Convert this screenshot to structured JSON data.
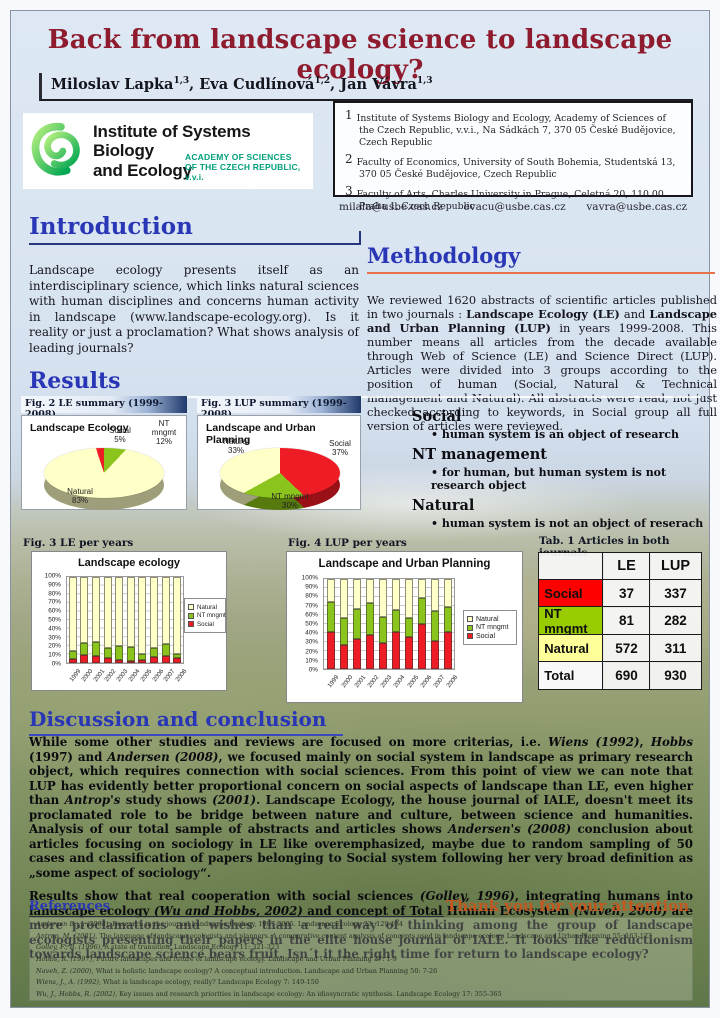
{
  "header": {
    "title": "Back from landscape science to landscape ecology?",
    "authors": [
      {
        "name": "Miloslav Lapka",
        "sup": "1,3"
      },
      {
        "name": "Eva Cudlínová",
        "sup": "1,2"
      },
      {
        "name": "Jan Vávra",
        "sup": "1,3"
      }
    ]
  },
  "logo": {
    "line1": "Institute of Systems Biology",
    "line2": "and Ecology",
    "sub1": "ACADEMY OF SCIENCES",
    "sub2": "OF THE CZECH REPUBLIC, v.v.i."
  },
  "affiliations": [
    {
      "num": "1",
      "text": "Institute of Systems Biology and Ecology, Academy of Sciences of the Czech Republic, v.v.i., Na Sádkách 7, 370 05 České Budějovice, Czech Republic"
    },
    {
      "num": "2",
      "text": "Faculty of Economics, University of South Bohemia, Studentská 13, 370 05 České Budějovice, Czech Republic"
    },
    {
      "num": "3",
      "text": "Faculty of Arts, Charles University in Prague, Celetná 20, 110 00 Praha 1, Czech Republic"
    }
  ],
  "emails": [
    "milala@usbe.cas.cz",
    "evacu@usbe.cas.cz",
    "vavra@usbe.cas.cz"
  ],
  "introduction": {
    "heading": "Introduction",
    "text": "Landscape ecology presents itself as an interdisciplinary science, which links natural sciences with human disciplines and concerns human activity in landscape (www.landscape-ecology.org). Is it reality or just a proclamation? What shows analysis of leading journals?"
  },
  "methodology": {
    "heading": "Methodology",
    "p1": "We reviewed 1620 abstracts of scientific articles published in two journals : ",
    "b1": "Landscape Ecology (LE)",
    "p2": " and ",
    "b2": "Landscape and Urban Planning (LUP)",
    "p3": " in years 1999-2008. This number means all articles from the decade available through Web of Science (LE) and Science Direct (LUP). Articles were divided into 3 groups according to the position of human (Social, Natural & Technical management and Natural). All abstracts were read, not just checked according to keywords, in Social group all full version of articles were reviewed.",
    "classes": [
      {
        "name": "Social",
        "bullet": "• human system is an object of research"
      },
      {
        "name": "NT management",
        "bullet": "•  for human, but human system is not research object"
      },
      {
        "name": "Natural",
        "bullet": "• human system is not an object of reserach"
      }
    ]
  },
  "results": {
    "heading": "Results",
    "fig2": "Fig. 2  LE summary (1999-2008)",
    "fig3": "Fig. 3  LUP summary (1999-2008)",
    "fig3b": "Fig. 3  LE per years",
    "fig4": "Fig. 4  LUP per years",
    "tab1": "Tab. 1  Articles in both journals"
  },
  "chart_data": [
    {
      "type": "pie",
      "title": "Landscape Ecology",
      "start_angle": -18,
      "slices": [
        {
          "label": "Social",
          "pct": 5,
          "color": "#ee1c25",
          "label_lines": "Social\n5%"
        },
        {
          "label": "NT mngmt",
          "pct": 12,
          "color": "#8cc41e",
          "label_lines": "NT\nmngmt\n12%"
        },
        {
          "label": "Natural",
          "pct": 83,
          "color": "#ffffc8",
          "label_lines": "Natural\n83%"
        }
      ]
    },
    {
      "type": "pie",
      "title": "Landscape and Urban Planning",
      "start_angle": 0,
      "slices": [
        {
          "label": "Social",
          "pct": 37,
          "color": "#ee1c25",
          "label_lines": "Social\n37%"
        },
        {
          "label": "NT mngmt",
          "pct": 30,
          "color": "#8cc41e",
          "label_lines": "NT mngmt\n30%"
        },
        {
          "label": "Natural",
          "pct": 33,
          "color": "#ffffc8",
          "label_lines": "Natural\n33%"
        }
      ]
    },
    {
      "type": "bar",
      "stacked": true,
      "title": "Landscape ecology",
      "categories": [
        "1999",
        "2000",
        "2001",
        "2002",
        "2003",
        "2004",
        "2005",
        "2006",
        "2007",
        "2008"
      ],
      "series": [
        {
          "name": "Natural",
          "color": "#ffffc8",
          "values": [
            86,
            77,
            75,
            82,
            80,
            82,
            90,
            83,
            78,
            90
          ]
        },
        {
          "name": "NT mngmt",
          "color": "#8cc41e",
          "values": [
            9,
            14,
            17,
            12,
            17,
            16,
            6,
            10,
            14,
            4
          ]
        },
        {
          "name": "Social",
          "color": "#ee1c25",
          "values": [
            5,
            9,
            8,
            6,
            3,
            2,
            4,
            7,
            8,
            6
          ]
        }
      ],
      "ylim": [
        0,
        100
      ],
      "ytick_step": 10,
      "legend_position": "right",
      "grid": true
    },
    {
      "type": "bar",
      "stacked": true,
      "title": "Landscape and Urban Planning",
      "categories": [
        "1999",
        "2000",
        "2001",
        "2002",
        "2003",
        "2004",
        "2005",
        "2006",
        "2007",
        "2008"
      ],
      "series": [
        {
          "name": "Natural",
          "color": "#ffffc8",
          "values": [
            25,
            43,
            33,
            27,
            42,
            34,
            43,
            21,
            36,
            31
          ]
        },
        {
          "name": "NT mngmt",
          "color": "#8cc41e",
          "values": [
            34,
            30,
            34,
            35,
            29,
            25,
            21,
            29,
            33,
            28
          ]
        },
        {
          "name": "Social",
          "color": "#ee1c25",
          "values": [
            41,
            27,
            33,
            38,
            29,
            41,
            36,
            50,
            31,
            41
          ]
        }
      ],
      "ylim": [
        0,
        100
      ],
      "ytick_step": 10,
      "legend_position": "right",
      "grid": true
    },
    {
      "type": "table",
      "title": "Articles in both journals",
      "headers": [
        "",
        "LE",
        "LUP"
      ],
      "rows": [
        {
          "label": "Social",
          "color": "#ff0000",
          "values": [
            37,
            337
          ]
        },
        {
          "label": "NT mngmt",
          "color": "#99cc00",
          "values": [
            81,
            282
          ]
        },
        {
          "label": "Natural",
          "color": "#ffff99",
          "values": [
            572,
            311
          ]
        },
        {
          "label": "Total",
          "color": "#f8f8f8",
          "values": [
            690,
            930
          ]
        }
      ]
    }
  ],
  "discussion": {
    "heading": "Discussion and conclusion",
    "p1": [
      {
        "t": "While some other studies and reviews are focused on more criterias, i.e. "
      },
      {
        "t": "Wiens (1992)",
        "i": true
      },
      {
        "t": ", "
      },
      {
        "t": "Hobbs",
        "i": true
      },
      {
        "t": " (1997) and "
      },
      {
        "t": "Andersen (2008)",
        "i": true
      },
      {
        "t": ", we focused mainly on social system in landscape as primary research object, which requires connection with social sciences.  From this point of view we can note that LUP has evidently better proportional concern on social aspects of landscape than LE, even higher than "
      },
      {
        "t": "Antrop's",
        "i": true
      },
      {
        "t": " study shows "
      },
      {
        "t": "(2001)",
        "i": true
      },
      {
        "t": ". Landscape Ecology, the house journal of IALE, doesn't meet its proclamated role to be bridge between nature and culture, between science and humanities. Analysis of our total sample of abstracts and articles shows "
      },
      {
        "t": "Andersen's (2008)",
        "i": true
      },
      {
        "t": " conclusion about articles focusing on sociology in LE like overemphasized, maybe due to random sampling of  50 cases and classification of papers belonging to Social system following her very broad definition as „some aspect of sociology“."
      }
    ],
    "p2": [
      {
        "t": "Results show that real cooperation with social sciences "
      },
      {
        "t": "(Golley, 1996)",
        "i": true
      },
      {
        "t": ", integrating humans into landscape ecology "
      },
      {
        "t": "(Wu and Hobbs, 2002)",
        "i": true
      },
      {
        "t": " and concept of Total Human Ecosystem "
      },
      {
        "t": "(Naveh, 2000)",
        "i": true
      },
      {
        "t": " are more proclamations and wishes than a real way of thinking among the group of landscape ecologists presenting their papers in the elite house journal of IALE. It looks like reductionism  towards landscape science bears fruit. Isn´t it the right time for return to landscape ecology?"
      }
    ],
    "thanks": "Thank you for your attention"
  },
  "references": {
    "heading": "References",
    "items": [
      {
        "i": "Andersen B., J. (2008)",
        "t": ", Research in the journal Landscape Ecology, 1987-2005. Landscape Ecology 23: 129-134"
      },
      {
        "i": "Antrop, M. (2001)",
        "t": ", The language of landscape ecologists and planners. A comparative content analysis of concepts used in landscape ecology. Landscape and Urban Planning 55: 163-173"
      },
      {
        "i": "Golley, F., B. (1996)",
        "t": ", A state of transition. Landscape Ecology 11: 321-323"
      },
      {
        "i": "Hobbs, R. (1997)",
        "t": ", Future landscapes and future of landscape ecology. Landscape and Urban Planning 37: 1-9"
      },
      {
        "i": "Naveh, Z. (2000)",
        "t": ", What is holistic landscape ecology? A conceptual introduction. Landscape and Urban Planning 50: 7-26"
      },
      {
        "i": "Wiens, J., A. (1992)",
        "t": ", What is landscape ecology, really? Landscape Ecology 7: 149-150"
      },
      {
        "i": "Wu, J., Hobbs, R. (2002)",
        "t": ", Key issues and research priorities in landscape ecology: An idiosyncratic synthesis. Landscape Ecology 17: 355-365"
      }
    ]
  }
}
